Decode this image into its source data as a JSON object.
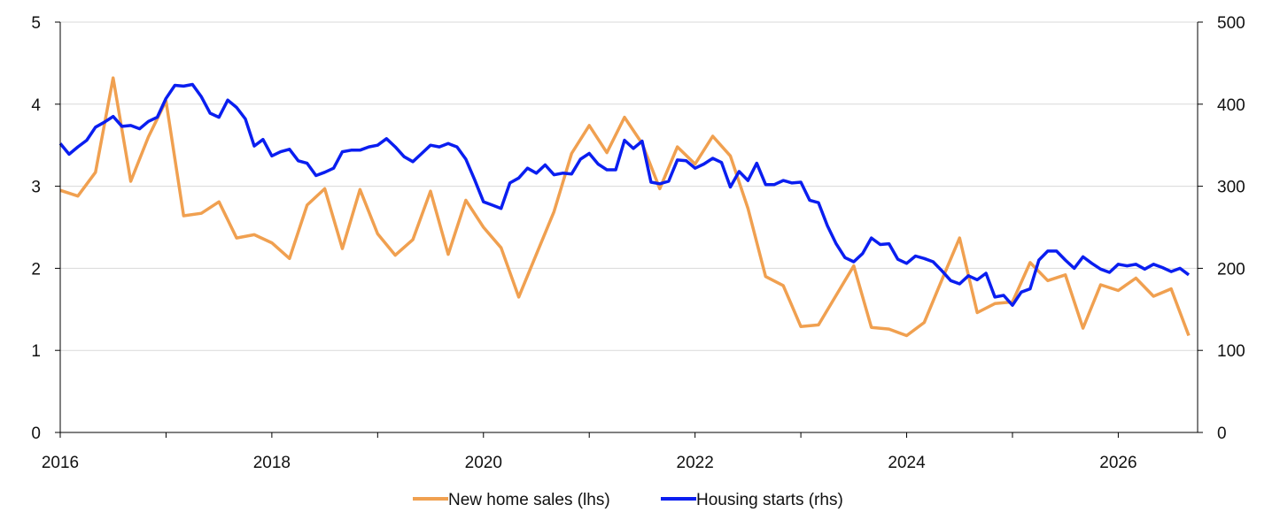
{
  "chart_data": {
    "type": "line",
    "title": "",
    "x_axis": {
      "type": "date",
      "range": [
        "2016-01",
        "2026-10"
      ],
      "tick_labels": [
        "2016",
        "2018",
        "2020",
        "2022",
        "2024",
        "2026"
      ]
    },
    "y_left": {
      "label": "",
      "range": [
        0,
        5
      ],
      "ticks": [
        "0",
        "1",
        "2",
        "3",
        "4",
        "5"
      ]
    },
    "y_right": {
      "label": "",
      "range": [
        0,
        500
      ],
      "ticks": [
        "0",
        "100",
        "200",
        "300",
        "400",
        "500"
      ]
    },
    "grid": "horizontal",
    "legend": {
      "placement": "bottom-center"
    },
    "series": [
      {
        "name": "New home sales (lhs)",
        "axis": "left",
        "color": "#F0A050",
        "points": [
          [
            "2016-01",
            2.95
          ],
          [
            "2016-03",
            2.88
          ],
          [
            "2016-05",
            3.17
          ],
          [
            "2016-07",
            4.32
          ],
          [
            "2016-09",
            3.06
          ],
          [
            "2016-11",
            3.6
          ],
          [
            "2017-01",
            4.04
          ],
          [
            "2017-03",
            2.64
          ],
          [
            "2017-05",
            2.67
          ],
          [
            "2017-07",
            2.81
          ],
          [
            "2017-09",
            2.37
          ],
          [
            "2017-11",
            2.41
          ],
          [
            "2018-01",
            2.31
          ],
          [
            "2018-03",
            2.12
          ],
          [
            "2018-05",
            2.77
          ],
          [
            "2018-07",
            2.97
          ],
          [
            "2018-09",
            2.24
          ],
          [
            "2018-11",
            2.96
          ],
          [
            "2019-01",
            2.42
          ],
          [
            "2019-03",
            2.16
          ],
          [
            "2019-05",
            2.35
          ],
          [
            "2019-07",
            2.94
          ],
          [
            "2019-09",
            2.17
          ],
          [
            "2019-11",
            2.83
          ],
          [
            "2020-01",
            2.5
          ],
          [
            "2020-03",
            2.25
          ],
          [
            "2020-05",
            1.65
          ],
          [
            "2020-07",
            2.17
          ],
          [
            "2020-09",
            2.69
          ],
          [
            "2020-11",
            3.4
          ],
          [
            "2021-01",
            3.74
          ],
          [
            "2021-03",
            3.41
          ],
          [
            "2021-05",
            3.84
          ],
          [
            "2021-07",
            3.52
          ],
          [
            "2021-09",
            2.97
          ],
          [
            "2021-11",
            3.48
          ],
          [
            "2022-01",
            3.27
          ],
          [
            "2022-03",
            3.61
          ],
          [
            "2022-05",
            3.37
          ],
          [
            "2022-07",
            2.73
          ],
          [
            "2022-09",
            1.9
          ],
          [
            "2022-11",
            1.79
          ],
          [
            "2023-01",
            1.29
          ],
          [
            "2023-03",
            1.31
          ],
          [
            "2023-05",
            1.67
          ],
          [
            "2023-07",
            2.03
          ],
          [
            "2023-09",
            1.28
          ],
          [
            "2023-11",
            1.26
          ],
          [
            "2024-01",
            1.18
          ],
          [
            "2024-03",
            1.34
          ],
          [
            "2024-05",
            1.86
          ],
          [
            "2024-07",
            2.37
          ],
          [
            "2024-09",
            1.46
          ],
          [
            "2024-11",
            1.57
          ],
          [
            "2025-01",
            1.59
          ],
          [
            "2025-03",
            2.07
          ],
          [
            "2025-05",
            1.85
          ],
          [
            "2025-07",
            1.92
          ],
          [
            "2025-09",
            1.27
          ],
          [
            "2025-11",
            1.8
          ],
          [
            "2026-01",
            1.73
          ],
          [
            "2026-03",
            1.88
          ],
          [
            "2026-05",
            1.66
          ],
          [
            "2026-07",
            1.75
          ],
          [
            "2026-09",
            1.18
          ]
        ]
      },
      {
        "name": "Housing starts (rhs)",
        "axis": "right",
        "color": "#0A1EF0",
        "points": [
          [
            "2016-01",
            352
          ],
          [
            "2016-02",
            339
          ],
          [
            "2016-03",
            348
          ],
          [
            "2016-04",
            356
          ],
          [
            "2016-05",
            372
          ],
          [
            "2016-06",
            378
          ],
          [
            "2016-07",
            385
          ],
          [
            "2016-08",
            373
          ],
          [
            "2016-09",
            374
          ],
          [
            "2016-10",
            370
          ],
          [
            "2016-11",
            379
          ],
          [
            "2016-12",
            384
          ],
          [
            "2017-01",
            407
          ],
          [
            "2017-02",
            423
          ],
          [
            "2017-03",
            422
          ],
          [
            "2017-04",
            424
          ],
          [
            "2017-05",
            409
          ],
          [
            "2017-06",
            389
          ],
          [
            "2017-07",
            384
          ],
          [
            "2017-08",
            405
          ],
          [
            "2017-09",
            396
          ],
          [
            "2017-10",
            382
          ],
          [
            "2017-11",
            349
          ],
          [
            "2017-12",
            357
          ],
          [
            "2018-01",
            337
          ],
          [
            "2018-02",
            342
          ],
          [
            "2018-03",
            345
          ],
          [
            "2018-04",
            331
          ],
          [
            "2018-05",
            328
          ],
          [
            "2018-06",
            313
          ],
          [
            "2018-07",
            317
          ],
          [
            "2018-08",
            322
          ],
          [
            "2018-09",
            342
          ],
          [
            "2018-10",
            344
          ],
          [
            "2018-11",
            344
          ],
          [
            "2018-12",
            348
          ],
          [
            "2019-01",
            350
          ],
          [
            "2019-02",
            358
          ],
          [
            "2019-03",
            348
          ],
          [
            "2019-04",
            336
          ],
          [
            "2019-05",
            330
          ],
          [
            "2019-06",
            340
          ],
          [
            "2019-07",
            350
          ],
          [
            "2019-08",
            348
          ],
          [
            "2019-09",
            352
          ],
          [
            "2019-10",
            348
          ],
          [
            "2019-11",
            333
          ],
          [
            "2019-12",
            308
          ],
          [
            "2020-01",
            281
          ],
          [
            "2020-02",
            277
          ],
          [
            "2020-03",
            273
          ],
          [
            "2020-04",
            304
          ],
          [
            "2020-05",
            310
          ],
          [
            "2020-06",
            322
          ],
          [
            "2020-07",
            316
          ],
          [
            "2020-08",
            326
          ],
          [
            "2020-09",
            314
          ],
          [
            "2020-10",
            316
          ],
          [
            "2020-11",
            315
          ],
          [
            "2020-12",
            333
          ],
          [
            "2021-01",
            340
          ],
          [
            "2021-02",
            327
          ],
          [
            "2021-03",
            320
          ],
          [
            "2021-04",
            320
          ],
          [
            "2021-05",
            356
          ],
          [
            "2021-06",
            346
          ],
          [
            "2021-07",
            355
          ],
          [
            "2021-08",
            305
          ],
          [
            "2021-09",
            303
          ],
          [
            "2021-10",
            306
          ],
          [
            "2021-11",
            332
          ],
          [
            "2021-12",
            331
          ],
          [
            "2022-01",
            322
          ],
          [
            "2022-02",
            327
          ],
          [
            "2022-03",
            334
          ],
          [
            "2022-04",
            329
          ],
          [
            "2022-05",
            299
          ],
          [
            "2022-06",
            318
          ],
          [
            "2022-07",
            307
          ],
          [
            "2022-08",
            328
          ],
          [
            "2022-09",
            302
          ],
          [
            "2022-10",
            302
          ],
          [
            "2022-11",
            307
          ],
          [
            "2022-12",
            304
          ],
          [
            "2023-01",
            305
          ],
          [
            "2023-02",
            283
          ],
          [
            "2023-03",
            280
          ],
          [
            "2023-04",
            252
          ],
          [
            "2023-05",
            230
          ],
          [
            "2023-06",
            213
          ],
          [
            "2023-07",
            208
          ],
          [
            "2023-08",
            218
          ],
          [
            "2023-09",
            237
          ],
          [
            "2023-10",
            229
          ],
          [
            "2023-11",
            230
          ],
          [
            "2023-12",
            211
          ],
          [
            "2024-01",
            206
          ],
          [
            "2024-02",
            215
          ],
          [
            "2024-03",
            212
          ],
          [
            "2024-04",
            208
          ],
          [
            "2024-05",
            197
          ],
          [
            "2024-06",
            185
          ],
          [
            "2024-07",
            181
          ],
          [
            "2024-08",
            191
          ],
          [
            "2024-09",
            186
          ],
          [
            "2024-10",
            194
          ],
          [
            "2024-11",
            165
          ],
          [
            "2024-12",
            167
          ],
          [
            "2025-01",
            155
          ],
          [
            "2025-02",
            171
          ],
          [
            "2025-03",
            175
          ],
          [
            "2025-04",
            210
          ],
          [
            "2025-05",
            221
          ],
          [
            "2025-06",
            221
          ],
          [
            "2025-07",
            210
          ],
          [
            "2025-08",
            200
          ],
          [
            "2025-09",
            214
          ],
          [
            "2025-10",
            206
          ],
          [
            "2025-11",
            199
          ],
          [
            "2025-12",
            195
          ],
          [
            "2026-01",
            205
          ],
          [
            "2026-02",
            203
          ],
          [
            "2026-03",
            205
          ],
          [
            "2026-04",
            199
          ],
          [
            "2026-05",
            205
          ],
          [
            "2026-06",
            201
          ],
          [
            "2026-07",
            196
          ],
          [
            "2026-08",
            200
          ],
          [
            "2026-09",
            192
          ]
        ]
      }
    ]
  }
}
